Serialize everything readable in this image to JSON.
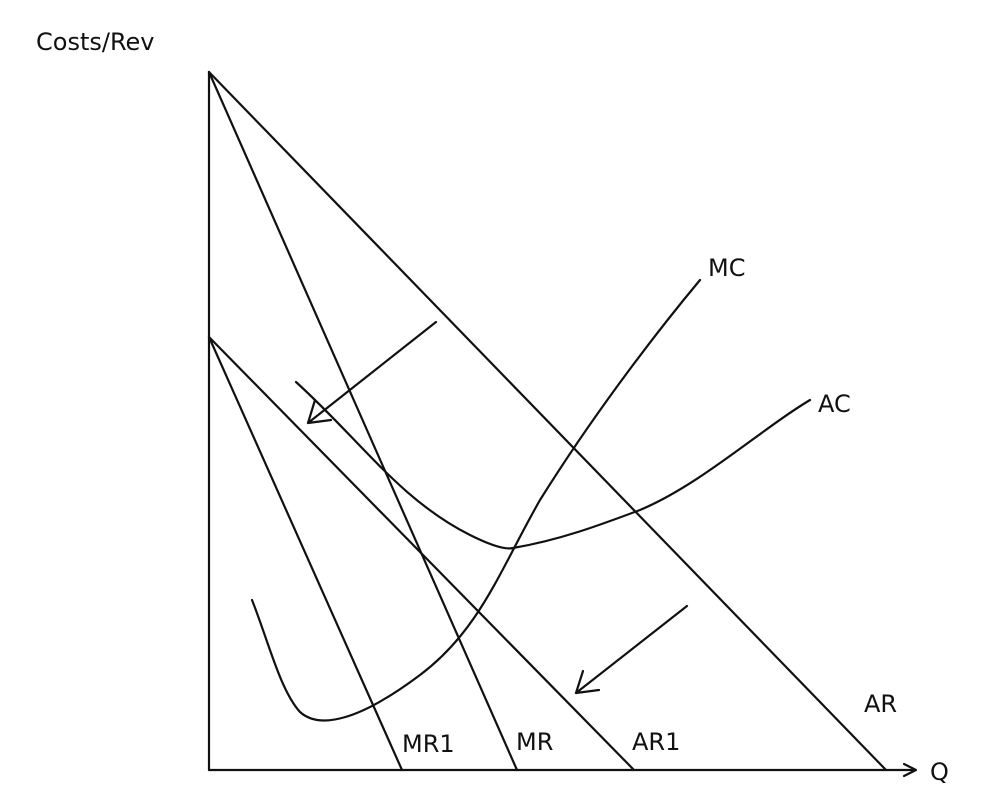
{
  "diagram": {
    "y_axis_label": "Costs/Rev",
    "x_axis_label": "Q",
    "curves": {
      "mc": "MC",
      "ac": "AC",
      "ar": "AR",
      "ar1": "AR1",
      "mr": "MR",
      "mr1": "MR1"
    }
  }
}
